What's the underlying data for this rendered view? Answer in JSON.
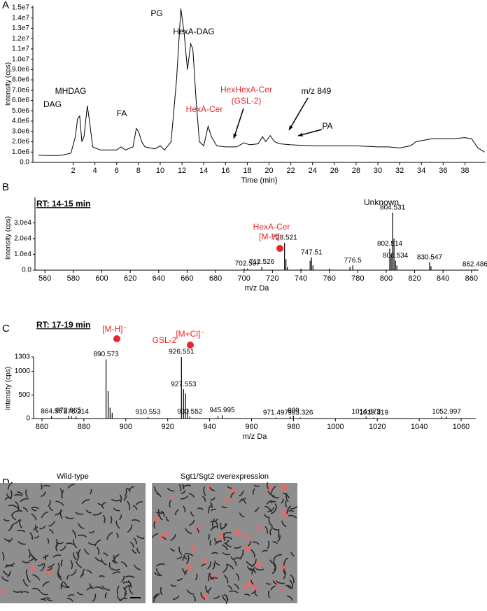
{
  "chart_data": [
    {
      "type": "line",
      "panel_label": "A",
      "y_label": "Intensity (cps)",
      "x_label": "Time (min)",
      "color": "#000000",
      "x": [
        -1.2,
        0,
        1,
        1.8,
        2.2,
        2.4,
        2.6,
        2.8,
        3.0,
        3.3,
        3.5,
        3.8,
        4.5,
        6,
        6.4,
        6.8,
        7.5,
        7.8,
        8.0,
        8.3,
        8.6,
        9.5,
        10,
        10.4,
        11,
        11.5,
        11.9,
        12.2,
        12.5,
        12.8,
        13.0,
        13.3,
        13.6,
        14.0,
        14.4,
        14.7,
        15.2,
        16,
        17,
        17.7,
        18.2,
        19,
        19.4,
        19.7,
        20.1,
        20.5,
        21,
        22,
        24,
        26,
        28,
        30,
        31,
        32,
        33,
        33.5,
        35,
        37,
        38,
        38.6,
        39.2,
        39.8
      ],
      "values": [
        700000,
        650000,
        700000,
        900000,
        2500000,
        4200000,
        4500000,
        2000000,
        2500000,
        5500000,
        4000000,
        1500000,
        1200000,
        1200000,
        1500000,
        1200000,
        1500000,
        3300000,
        3000000,
        2000000,
        1500000,
        1300000,
        1600000,
        1200000,
        2000000,
        8000000,
        14900000,
        12500000,
        9000000,
        11500000,
        11000000,
        6000000,
        2000000,
        1600000,
        3500000,
        2500000,
        1600000,
        1500000,
        1500000,
        1900000,
        1700000,
        1800000,
        2500000,
        2000000,
        2600000,
        2000000,
        1800000,
        1700000,
        1600000,
        1600000,
        1600000,
        1500000,
        1500000,
        1400000,
        1600000,
        2000000,
        2300000,
        2300000,
        2400000,
        2300000,
        1400000,
        1000000
      ],
      "xlim": [
        -1.7,
        39.9
      ],
      "xticks": [
        2,
        4,
        6,
        8,
        10,
        12,
        14,
        16,
        18,
        20,
        22,
        24,
        26,
        28,
        30,
        32,
        34,
        36,
        38
      ],
      "ylim": [
        0,
        15200000
      ],
      "yticks": [
        {
          "value": 0,
          "label": "0.0"
        },
        {
          "value": 1000000,
          "label": "1.0e6"
        },
        {
          "value": 2000000,
          "label": "2.0e6"
        },
        {
          "value": 3000000,
          "label": "3.0e6"
        },
        {
          "value": 4000000,
          "label": "4.0e6"
        },
        {
          "value": 5000000,
          "label": "5.0e6"
        },
        {
          "value": 6000000,
          "label": "6.0e6"
        },
        {
          "value": 7000000,
          "label": "7.0e6"
        },
        {
          "value": 8000000,
          "label": "8.0e6"
        },
        {
          "value": 9000000,
          "label": "9.0e6"
        },
        {
          "value": 10000000,
          "label": "1.0e7"
        },
        {
          "value": 11000000,
          "label": "1.1e7"
        },
        {
          "value": 12000000,
          "label": "1.2e7"
        },
        {
          "value": 13000000,
          "label": "1.3e7"
        },
        {
          "value": 14000000,
          "label": "1.4e7"
        },
        {
          "value": 15000000,
          "label": "1.5e7"
        }
      ],
      "annotations": [
        {
          "text": "DAG",
          "color": "#000000"
        },
        {
          "text": "MHDAG",
          "color": "#000000"
        },
        {
          "text": "FA",
          "color": "#000000"
        },
        {
          "text": "PG",
          "color": "#000000"
        },
        {
          "text": "HexA-DAG",
          "color": "#000000"
        },
        {
          "text": "HexA-Cer",
          "color": "#e8262a"
        },
        {
          "text": "HexHexA-Cer",
          "color": "#e8262a"
        },
        {
          "text": "(GSL-2)",
          "color": "#e8262a"
        },
        {
          "text": "m/z 849",
          "color": "#000000"
        },
        {
          "text": "PA",
          "color": "#000000"
        }
      ]
    },
    {
      "type": "spectrum",
      "panel_label": "B",
      "title": "RT: 14-15 min",
      "y_label": "Intensity (cps)",
      "x_label": "m/z Da",
      "color": "#000000",
      "x": [
        702.507,
        712.526,
        728.521,
        747.51,
        776.5,
        802.514,
        804.531,
        806.534,
        830.547,
        862.486
      ],
      "values": [
        1000,
        2000,
        17300,
        8000,
        3000,
        13600,
        36400,
        6000,
        5000,
        500
      ],
      "other_x": [
        700.2,
        729.5,
        730.5,
        740.1,
        746.5,
        748.5,
        760.3,
        774.5,
        803.5,
        805.5,
        807.5,
        831.5
      ],
      "other_values": [
        1000,
        7000,
        2000,
        1000,
        6000,
        3000,
        1000,
        2000,
        10000,
        20000,
        3000,
        2500
      ],
      "xlim": [
        553,
        865
      ],
      "xticks": [
        560,
        580,
        600,
        620,
        640,
        660,
        680,
        700,
        720,
        740,
        760,
        780,
        800,
        820,
        840,
        860
      ],
      "ylim": [
        0,
        46000
      ],
      "yticks": [
        {
          "value": 0,
          "label": "0.0"
        },
        {
          "value": 10000,
          "label": "1.0e4"
        },
        {
          "value": 20000,
          "label": "2.0e4"
        },
        {
          "value": 30000,
          "label": "3.0e4"
        }
      ],
      "annotations": [
        {
          "text": "HexA-Cer",
          "color": "#e8262a"
        },
        {
          "text": "[M-H]⁻",
          "color": "#e8262a"
        },
        {
          "text": "Unknown",
          "color": "#000000"
        }
      ]
    },
    {
      "type": "spectrum",
      "panel_label": "C",
      "title": "RT: 17-19 min",
      "y_label": "Intensity (cps)",
      "x_label": "m/z Da",
      "color": "#000000",
      "x": [
        864.56,
        872.665,
        876.314,
        890.573,
        910.553,
        926.551,
        927.553,
        930.552,
        945.995,
        971.497,
        980.0,
        983.326,
        1014.673,
        1018.319,
        1052.997
      ],
      "values": [
        50,
        60,
        40,
        1250,
        30,
        1303,
        620,
        40,
        70,
        20,
        60,
        20,
        40,
        20,
        40
      ],
      "other_x": [
        891.57,
        892.5,
        893.5,
        928.5,
        929.5,
        874.0,
        944.0,
        978.5,
        1050.5
      ],
      "other_values": [
        580,
        230,
        120,
        530,
        210,
        50,
        50,
        40,
        35
      ],
      "xlim": [
        856,
        1067
      ],
      "xticks": [
        860,
        880,
        900,
        920,
        940,
        960,
        980,
        1000,
        1020,
        1040,
        1060
      ],
      "ylim": [
        0,
        1303
      ],
      "yticks": [
        0,
        500,
        1000,
        1303
      ],
      "annotations": [
        {
          "text": "[M-H]⁻",
          "color": "#e8262a"
        },
        {
          "text": "GSL-2",
          "color": "#e8262a"
        },
        {
          "text": "[M+Cl]⁻",
          "color": "#e8262a"
        }
      ]
    }
  ],
  "panel_d": {
    "panel_label": "D",
    "images": [
      {
        "title": "Wild-type"
      },
      {
        "title": "Sgt1/Sgt2 overexpression"
      }
    ]
  }
}
